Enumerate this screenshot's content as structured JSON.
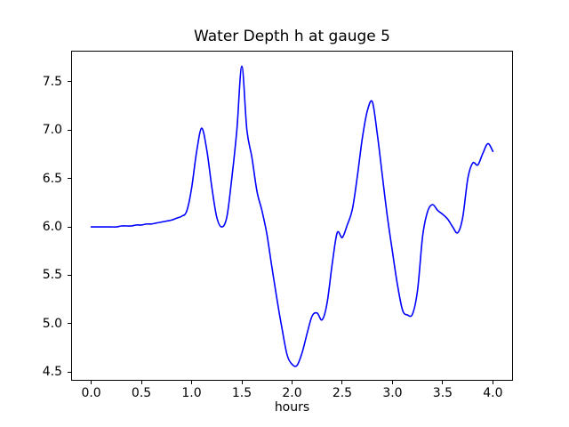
{
  "figure": {
    "background": "#ffffff",
    "text_color": "#000000"
  },
  "chart_data": {
    "type": "line",
    "title": "Water Depth h at gauge 5",
    "xlabel": "hours",
    "ylabel": "",
    "grid": false,
    "legend": "none",
    "xlim": [
      -0.2,
      4.2
    ],
    "ylim": [
      4.42,
      7.82
    ],
    "x_tick_labels": [
      "0.0",
      "0.5",
      "1.0",
      "1.5",
      "2.0",
      "2.5",
      "3.0",
      "3.5",
      "4.0"
    ],
    "y_tick_labels": [
      "4.5",
      "5.0",
      "5.5",
      "6.0",
      "6.5",
      "7.0",
      "7.5"
    ],
    "series": [
      {
        "name": "water depth h",
        "color": "#0000ff",
        "line_width": 1.6,
        "x": [
          0.0,
          0.05,
          0.1,
          0.15,
          0.2,
          0.25,
          0.3,
          0.35,
          0.4,
          0.45,
          0.5,
          0.55,
          0.6,
          0.65,
          0.7,
          0.75,
          0.8,
          0.85,
          0.9,
          0.95,
          1.0,
          1.05,
          1.1,
          1.15,
          1.2,
          1.25,
          1.3,
          1.35,
          1.4,
          1.45,
          1.5,
          1.55,
          1.6,
          1.65,
          1.7,
          1.75,
          1.8,
          1.85,
          1.9,
          1.95,
          2.0,
          2.05,
          2.1,
          2.15,
          2.2,
          2.25,
          2.3,
          2.35,
          2.4,
          2.45,
          2.5,
          2.55,
          2.6,
          2.65,
          2.7,
          2.75,
          2.8,
          2.85,
          2.9,
          2.95,
          3.0,
          3.05,
          3.1,
          3.15,
          3.2,
          3.25,
          3.3,
          3.35,
          3.4,
          3.45,
          3.5,
          3.55,
          3.6,
          3.65,
          3.7,
          3.75,
          3.8,
          3.85,
          3.9,
          3.95,
          4.0
        ],
        "values": [
          6.0,
          6.0,
          6.0,
          6.0,
          6.0,
          6.0,
          6.01,
          6.01,
          6.01,
          6.02,
          6.02,
          6.03,
          6.03,
          6.04,
          6.05,
          6.06,
          6.07,
          6.09,
          6.11,
          6.16,
          6.4,
          6.78,
          7.02,
          6.8,
          6.42,
          6.1,
          6.0,
          6.1,
          6.5,
          7.0,
          7.66,
          7.0,
          6.72,
          6.37,
          6.17,
          5.92,
          5.58,
          5.25,
          4.95,
          4.68,
          4.58,
          4.57,
          4.7,
          4.9,
          5.08,
          5.11,
          5.04,
          5.22,
          5.62,
          5.94,
          5.89,
          6.02,
          6.18,
          6.52,
          6.92,
          7.2,
          7.29,
          6.95,
          6.52,
          6.1,
          5.74,
          5.4,
          5.14,
          5.09,
          5.1,
          5.35,
          5.9,
          6.16,
          6.23,
          6.17,
          6.13,
          6.08,
          6.0,
          5.94,
          6.1,
          6.5,
          6.66,
          6.64,
          6.76,
          6.86,
          6.78
        ]
      }
    ]
  }
}
